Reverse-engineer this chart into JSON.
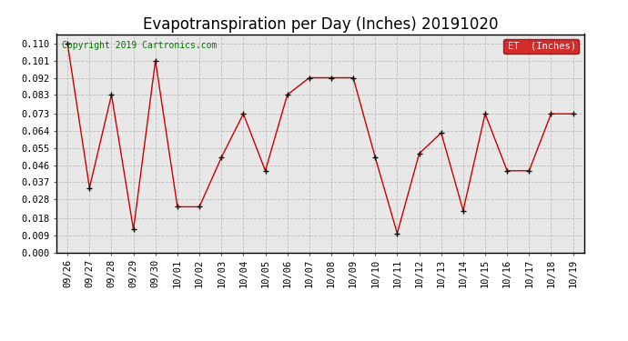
{
  "title": "Evapotranspiration per Day (Inches) 20191020",
  "copyright_text": "Copyright 2019 Cartronics.com",
  "legend_label": "ET  (Inches)",
  "legend_bg": "#cc0000",
  "legend_text_color": "#ffffff",
  "line_color": "#cc0000",
  "marker_color": "#000000",
  "background_color": "#e8e8e8",
  "grid_color": "#bbbbbb",
  "border_color": "#000000",
  "x_labels": [
    "09/26",
    "09/27",
    "09/28",
    "09/29",
    "09/30",
    "10/01",
    "10/02",
    "10/03",
    "10/04",
    "10/05",
    "10/06",
    "10/07",
    "10/08",
    "10/09",
    "10/10",
    "10/11",
    "10/12",
    "10/13",
    "10/14",
    "10/15",
    "10/16",
    "10/17",
    "10/18",
    "10/19"
  ],
  "y_values": [
    0.11,
    0.034,
    0.083,
    0.012,
    0.101,
    0.024,
    0.024,
    0.05,
    0.073,
    0.043,
    0.083,
    0.092,
    0.092,
    0.092,
    0.05,
    0.01,
    0.052,
    0.063,
    0.022,
    0.073,
    0.043,
    0.043,
    0.073,
    0.073
  ],
  "y_ticks": [
    0.0,
    0.009,
    0.018,
    0.028,
    0.037,
    0.046,
    0.055,
    0.064,
    0.073,
    0.083,
    0.092,
    0.101,
    0.11
  ],
  "y_tick_labels": [
    "0.000",
    "0.009",
    "0.018",
    "0.028",
    "0.037",
    "0.046",
    "0.055",
    "0.064",
    "0.073",
    "0.083",
    "0.092",
    "0.101",
    "0.110"
  ],
  "ylim": [
    0.0,
    0.115
  ],
  "title_fontsize": 12,
  "axis_fontsize": 7.5,
  "copyright_fontsize": 7,
  "figsize": [
    6.9,
    3.75
  ],
  "dpi": 100
}
